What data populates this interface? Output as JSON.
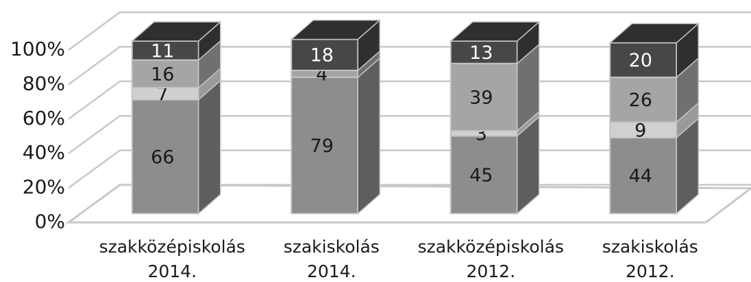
{
  "chart_data": {
    "type": "bar3d_stacked",
    "categories": [
      [
        "szakközépiskolás",
        "2014."
      ],
      [
        "szakiskolás",
        "2014."
      ],
      [
        "szakközépiskolás",
        "2012."
      ],
      [
        "szakiskolás",
        "2012."
      ]
    ],
    "series": [
      {
        "color": "#8d8d8d",
        "side_color": "#5e5e5e",
        "label_color": "#1a1a1a",
        "values": [
          66,
          79,
          45,
          44
        ]
      },
      {
        "color": "#d0d0d0",
        "side_color": "#9a9a9a",
        "label_color": "#1a1a1a",
        "values": [
          7,
          null,
          3,
          9
        ]
      },
      {
        "color": "#a5a5a5",
        "side_color": "#707070",
        "label_color": "#1a1a1a",
        "values": [
          16,
          4,
          39,
          26
        ]
      },
      {
        "color": "#474747",
        "side_color": "#2f2f2f",
        "label_color": "#ffffff",
        "values": [
          11,
          18,
          13,
          20
        ]
      }
    ],
    "ylim": [
      0,
      100
    ],
    "yticks": [
      {
        "value": 0,
        "label": "0%"
      },
      {
        "value": 20,
        "label": "20%"
      },
      {
        "value": 40,
        "label": "40%"
      },
      {
        "value": 60,
        "label": "60%"
      },
      {
        "value": 80,
        "label": "80%"
      },
      {
        "value": 100,
        "label": "100%"
      }
    ],
    "grid": true
  }
}
